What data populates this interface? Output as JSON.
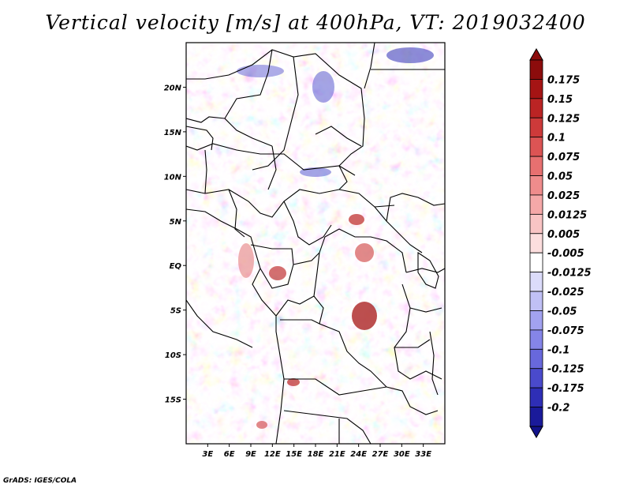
{
  "title": "Vertical velocity [m/s] at 400hPa, VT: 2019032400",
  "credit": "GrADS: IGES/COLA",
  "map": {
    "lon_range": [
      0,
      36
    ],
    "lat_range": [
      -20,
      25
    ],
    "x_ticks": [
      {
        "value": 3,
        "label": "3E"
      },
      {
        "value": 6,
        "label": "6E"
      },
      {
        "value": 9,
        "label": "9E"
      },
      {
        "value": 12,
        "label": "12E"
      },
      {
        "value": 15,
        "label": "15E"
      },
      {
        "value": 18,
        "label": "18E"
      },
      {
        "value": 21,
        "label": "21E"
      },
      {
        "value": 24,
        "label": "24E"
      },
      {
        "value": 27,
        "label": "27E"
      },
      {
        "value": 30,
        "label": "30E"
      },
      {
        "value": 33,
        "label": "33E"
      }
    ],
    "y_ticks": [
      {
        "value": 20,
        "label": "20N"
      },
      {
        "value": 15,
        "label": "15N"
      },
      {
        "value": 10,
        "label": "10N"
      },
      {
        "value": 5,
        "label": "5N"
      },
      {
        "value": 0,
        "label": "EQ"
      },
      {
        "value": -5,
        "label": "5S"
      },
      {
        "value": -10,
        "label": "10S"
      },
      {
        "value": -15,
        "label": "15S"
      }
    ]
  },
  "colorbar": {
    "levels": [
      {
        "label": "0.175",
        "color": "#a51414"
      },
      {
        "label": "0.15",
        "color": "#bb2424"
      },
      {
        "label": "0.125",
        "color": "#cd3a3a"
      },
      {
        "label": "0.1",
        "color": "#dc5454"
      },
      {
        "label": "0.075",
        "color": "#e77070"
      },
      {
        "label": "0.05",
        "color": "#ef8c8c"
      },
      {
        "label": "0.025",
        "color": "#f5a8a8"
      },
      {
        "label": "0.0125",
        "color": "#f9c4c4"
      },
      {
        "label": "0.005",
        "color": "#fcdede"
      },
      {
        "label": "-0.005",
        "color": "#ffffff"
      },
      {
        "label": "-0.0125",
        "color": "#dcdcfa"
      },
      {
        "label": "-0.025",
        "color": "#c0c0f5"
      },
      {
        "label": "-0.05",
        "color": "#a2a2f0"
      },
      {
        "label": "-0.075",
        "color": "#8585e8"
      },
      {
        "label": "-0.1",
        "color": "#6868dc"
      },
      {
        "label": "-0.125",
        "color": "#4a4acc"
      },
      {
        "label": "-0.175",
        "color": "#2e2eb6"
      },
      {
        "label": "-0.2",
        "color": "#1a1a9a"
      }
    ],
    "top_color": "#8c0c0c",
    "bottom_color": "#12128a"
  }
}
